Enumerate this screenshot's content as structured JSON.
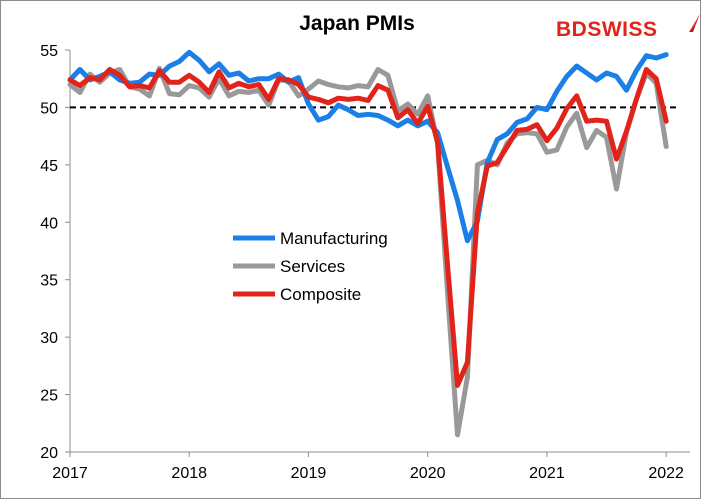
{
  "chart_data": {
    "type": "line",
    "title": "Japan PMIs",
    "xlabel": "",
    "ylabel": "",
    "xlim": [
      2017.0,
      2022.2
    ],
    "ylim": [
      20,
      55
    ],
    "x_ticks": [
      2017,
      2018,
      2019,
      2020,
      2021,
      2022
    ],
    "x_tick_labels": [
      "2017",
      "2018",
      "2019",
      "2020",
      "2021",
      "2022"
    ],
    "y_ticks": [
      20,
      25,
      30,
      35,
      40,
      45,
      50,
      55
    ],
    "y_tick_labels": [
      "20",
      "25",
      "30",
      "35",
      "40",
      "45",
      "50",
      "55"
    ],
    "reference_line": {
      "y": 50,
      "style": "dashed",
      "color": "#000000"
    },
    "legend_position": "center-left",
    "grid": false,
    "start_month": "2017-01",
    "series": [
      {
        "name": "Manufacturing",
        "color": "#1a7fe6",
        "values": [
          52.4,
          53.3,
          52.4,
          52.7,
          53.1,
          52.4,
          52.1,
          52.2,
          52.9,
          52.8,
          53.6,
          54.0,
          54.8,
          54.1,
          53.1,
          53.8,
          52.8,
          53.0,
          52.3,
          52.5,
          52.5,
          52.9,
          52.2,
          52.6,
          50.3,
          48.9,
          49.2,
          50.2,
          49.8,
          49.3,
          49.4,
          49.3,
          48.9,
          48.4,
          48.9,
          48.4,
          48.8,
          47.8,
          44.8,
          41.9,
          38.4,
          40.1,
          45.2,
          47.2,
          47.7,
          48.7,
          49.0,
          50.0,
          49.8,
          51.4,
          52.7,
          53.6,
          53.0,
          52.4,
          53.0,
          52.7,
          51.5,
          53.2,
          54.5,
          54.3,
          54.6
        ],
        "display_mode": "shape"
      },
      {
        "name": "Services",
        "color": "#999999",
        "values": [
          52.0,
          51.3,
          52.9,
          52.2,
          53.0,
          53.3,
          51.8,
          51.6,
          51.0,
          53.4,
          51.2,
          51.1,
          51.9,
          51.7,
          50.9,
          52.5,
          51.0,
          51.4,
          51.3,
          51.5,
          50.2,
          52.4,
          52.3,
          51.0,
          51.6,
          52.3,
          52.0,
          51.8,
          51.7,
          51.9,
          51.8,
          53.3,
          52.8,
          49.7,
          50.3,
          49.4,
          51.0,
          46.8,
          33.8,
          21.5,
          26.5,
          45.0,
          45.4,
          45.0,
          46.9,
          47.7,
          47.8,
          47.7,
          46.1,
          46.3,
          48.3,
          49.5,
          46.5,
          48.0,
          47.4,
          42.9,
          47.8,
          50.7,
          53.0,
          52.1,
          46.6
        ],
        "display_mode": "shape"
      },
      {
        "name": "Composite",
        "color": "#e2231a",
        "values": [
          52.4,
          51.9,
          52.6,
          52.4,
          53.3,
          52.8,
          51.8,
          51.9,
          51.7,
          53.2,
          52.2,
          52.2,
          52.8,
          52.2,
          51.3,
          53.1,
          51.7,
          52.1,
          51.8,
          52.0,
          50.7,
          52.5,
          52.4,
          52.0,
          50.9,
          50.7,
          50.4,
          50.8,
          50.7,
          50.8,
          50.6,
          51.9,
          51.5,
          49.1,
          49.8,
          48.6,
          50.1,
          47.0,
          36.2,
          25.8,
          27.8,
          40.8,
          44.9,
          45.2,
          46.6,
          48.0,
          48.1,
          48.5,
          47.1,
          48.2,
          49.9,
          51.0,
          48.8,
          48.9,
          48.8,
          45.5,
          47.9,
          50.7,
          53.3,
          52.5,
          48.8
        ],
        "display_mode": "shape"
      }
    ]
  },
  "logo": {
    "text_bd": "BD",
    "text_swiss": "SWISS"
  }
}
